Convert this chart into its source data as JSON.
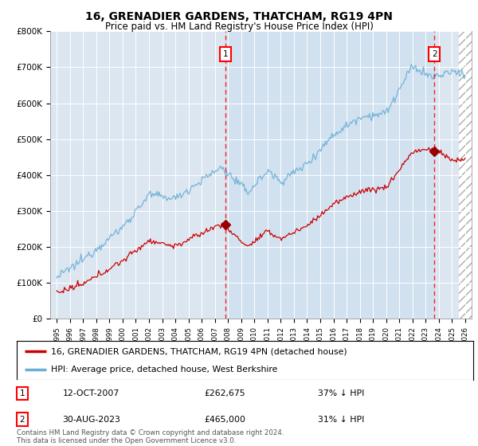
{
  "title": "16, GRENADIER GARDENS, THATCHAM, RG19 4PN",
  "subtitle": "Price paid vs. HM Land Registry's House Price Index (HPI)",
  "plot_bg_color": "#dce6f1",
  "hpi_color": "#6baed6",
  "price_color": "#cc0000",
  "ylim": [
    0,
    800000
  ],
  "yticks": [
    0,
    100000,
    200000,
    300000,
    400000,
    500000,
    600000,
    700000,
    800000
  ],
  "ytick_labels": [
    "£0",
    "£100K",
    "£200K",
    "£300K",
    "£400K",
    "£500K",
    "£600K",
    "£700K",
    "£800K"
  ],
  "legend_label_price": "16, GRENADIER GARDENS, THATCHAM, RG19 4PN (detached house)",
  "legend_label_hpi": "HPI: Average price, detached house, West Berkshire",
  "marker1_x": 2007.79,
  "marker1_y": 262675,
  "marker2_x": 2023.66,
  "marker2_y": 465000,
  "annotation1_date": "12-OCT-2007",
  "annotation1_price": "£262,675",
  "annotation1_hpi": "37% ↓ HPI",
  "annotation2_date": "30-AUG-2023",
  "annotation2_price": "£465,000",
  "annotation2_hpi": "31% ↓ HPI",
  "footer": "Contains HM Land Registry data © Crown copyright and database right 2024.\nThis data is licensed under the Open Government Licence v3.0.",
  "xlim_start": 1994.5,
  "xlim_end": 2026.5,
  "hatch_start": 2025.5
}
